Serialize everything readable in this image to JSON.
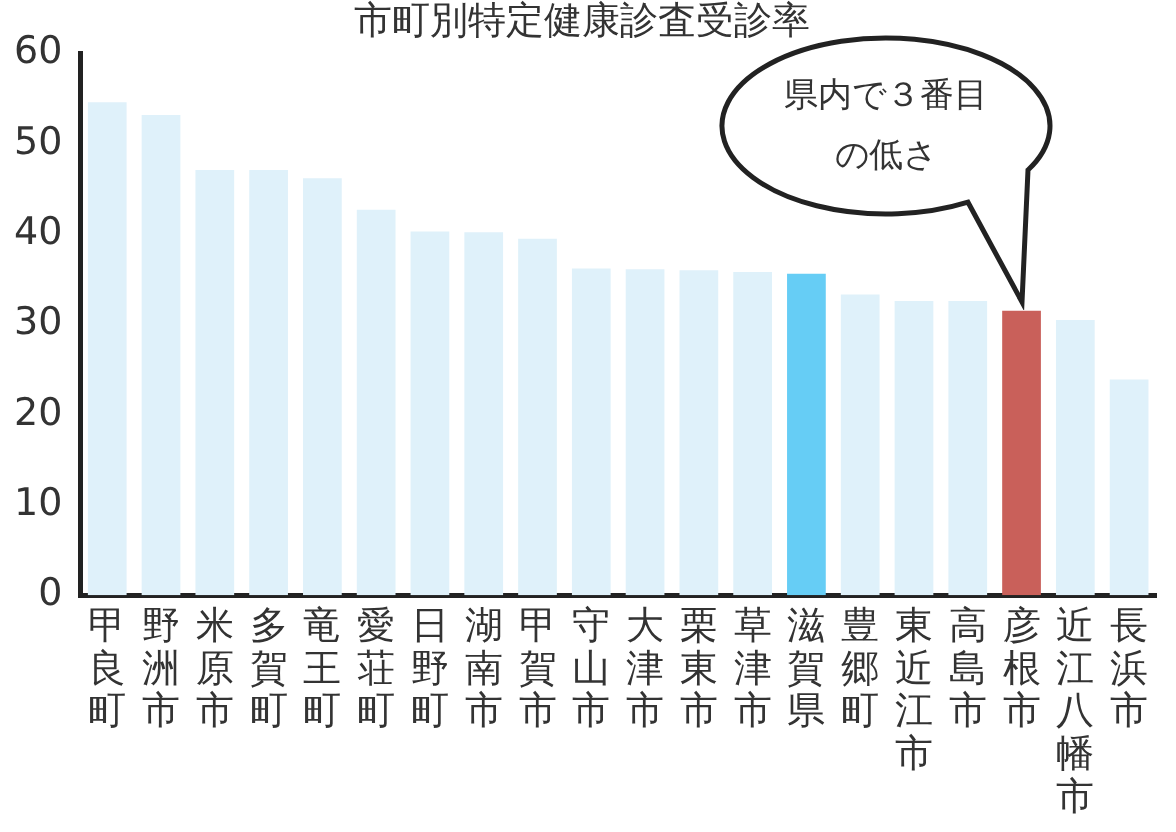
{
  "chart_data": {
    "type": "bar",
    "title": "市町別特定健康診査受診率",
    "categories": [
      "甲良町",
      "野洲市",
      "米原市",
      "多賀町",
      "竜王町",
      "愛荘町",
      "日野町",
      "湖南市",
      "甲賀市",
      "守山市",
      "大津市",
      "栗東市",
      "草津市",
      "滋賀県",
      "豊郷町",
      "東近江市",
      "高島市",
      "彦根市",
      "近江八幡市",
      "長浜市"
    ],
    "values": [
      54.6,
      53.2,
      47.1,
      47.1,
      46.2,
      42.7,
      40.3,
      40.2,
      39.5,
      36.2,
      36.1,
      36.0,
      35.8,
      35.6,
      33.3,
      32.6,
      32.6,
      31.5,
      30.5,
      23.9
    ],
    "colors": [
      "#dff1fa",
      "#dff1fa",
      "#dff1fa",
      "#dff1fa",
      "#dff1fa",
      "#dff1fa",
      "#dff1fa",
      "#dff1fa",
      "#dff1fa",
      "#dff1fa",
      "#dff1fa",
      "#dff1fa",
      "#dff1fa",
      "#66cdf5",
      "#dff1fa",
      "#dff1fa",
      "#dff1fa",
      "#c9605a",
      "#dff1fa",
      "#dff1fa"
    ],
    "ylim": [
      0,
      60
    ],
    "yticks": [
      0,
      10,
      20,
      30,
      40,
      50,
      60
    ],
    "grid": false,
    "legend": false,
    "annotations": [
      "県内で３番目の低さ"
    ]
  }
}
